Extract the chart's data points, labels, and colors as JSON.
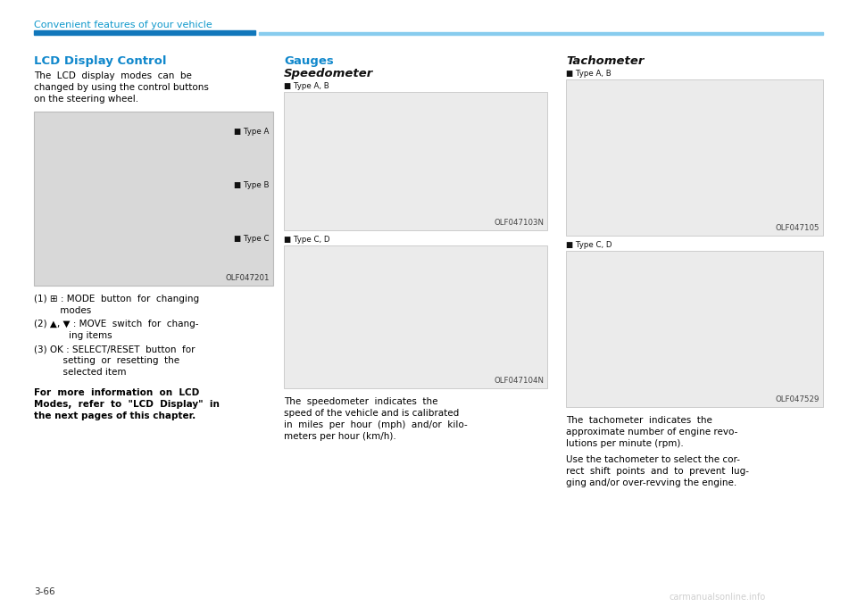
{
  "page_bg": "#ffffff",
  "header_text": "Convenient features of your vehicle",
  "header_color": "#1199cc",
  "header_bar_color1": "#0077bb",
  "header_bar_color2": "#88ccee",
  "page_number": "3-66",
  "col1_title": "LCD Display Control",
  "col1_title_color": "#1188cc",
  "col1_body1_lines": [
    "The  LCD  display  modes  can  be",
    "changed by using the control buttons",
    "on the steering wheel."
  ],
  "col1_img_label": "OLF047201",
  "col1_type_labels": [
    "■ Type A",
    "■ Type B",
    "■ Type C"
  ],
  "col1_item1_lines": [
    "(1) ⊞ : MODE  button  for  changing",
    "         modes"
  ],
  "col1_item2_lines": [
    "(2) ▲, ▼ : MOVE  switch  for  chang-",
    "            ing items"
  ],
  "col1_item3_lines": [
    "(3) OK : SELECT/RESET  button  for",
    "          setting  or  resetting  the",
    "          selected item"
  ],
  "col1_bold_lines": [
    "For  more  information  on  LCD",
    "Modes,  refer  to  \"LCD  Display\"  in",
    "the next pages of this chapter."
  ],
  "col2_title": "Gauges",
  "col2_subtitle": "Speedometer",
  "col2_title_color": "#1188cc",
  "col2_box1_label": "■ Type A, B",
  "col2_box1_img": "OLF047103N",
  "col2_box2_label": "■ Type C, D",
  "col2_box2_img": "OLF047104N",
  "col2_body_lines": [
    "The  speedometer  indicates  the",
    "speed of the vehicle and is calibrated",
    "in  miles  per  hour  (mph)  and/or  kilo-",
    "meters per hour (km/h)."
  ],
  "col3_title": "Tachometer",
  "col3_box1_label": "■ Type A, B",
  "col3_box1_img": "OLF047105",
  "col3_box2_label": "■ Type C, D",
  "col3_box2_img": "OLF047529",
  "col3_body1_lines": [
    "The  tachometer  indicates  the",
    "approximate number of engine revo-",
    "lutions per minute (rpm)."
  ],
  "col3_body2_lines": [
    "Use the tachometer to select the cor-",
    "rect  shift  points  and  to  prevent  lug-",
    "ging and/or over-revving the engine."
  ],
  "box_bg": "#ebebeb",
  "box_border": "#cccccc",
  "text_color": "#000000",
  "fs_body": 7.5,
  "fs_header": 8.0,
  "fs_title": 9.5,
  "fs_subtitle": 9.5,
  "fs_small": 6.2,
  "fs_page": 7.5,
  "lh": 13
}
